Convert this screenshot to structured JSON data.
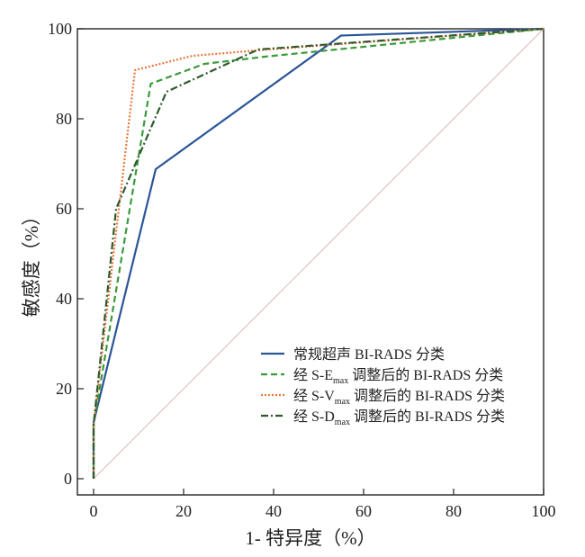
{
  "chart_data": {
    "type": "line",
    "title": "",
    "xlabel": "1- 特异度（%）",
    "ylabel": "敏感度（%）",
    "xlim": [
      0,
      100
    ],
    "ylim": [
      0,
      100
    ],
    "xticks": [
      "0",
      "20",
      "40",
      "60",
      "80",
      "100"
    ],
    "yticks": [
      "0",
      "20",
      "40",
      "60",
      "80",
      "100"
    ],
    "grid": false,
    "legend_position": "bottom-right",
    "series": [
      {
        "name": "常规超声 BI-RADS 分类",
        "legend_prefix": "常规超声 BI-RADS 分类",
        "legend_sub": "",
        "legend_suffix": "",
        "color": "#2a5597",
        "style": "solid",
        "x": [
          0,
          0,
          13.8,
          55,
          100
        ],
        "y": [
          0,
          12.5,
          68.8,
          98.5,
          100
        ]
      },
      {
        "name": "经 S-Emax 调整后的 BI-RADS 分类",
        "legend_prefix": "经 S-E",
        "legend_sub": "max",
        "legend_suffix": " 调整后的 BI-RADS 分类",
        "color": "#3a9a3a",
        "style": "dashed",
        "x": [
          0,
          0,
          12.7,
          24.6,
          38,
          100
        ],
        "y": [
          0,
          12,
          87.8,
          92.2,
          93.8,
          100
        ]
      },
      {
        "name": "经 S-Vmax 调整后的 BI-RADS 分类",
        "legend_prefix": "经 S-V",
        "legend_sub": "max",
        "legend_suffix": " 调整后的 BI-RADS 分类",
        "color": "#e8773a",
        "style": "dotted",
        "x": [
          0,
          0,
          9.2,
          22,
          40,
          100
        ],
        "y": [
          0,
          12,
          90.8,
          94,
          95.5,
          100
        ]
      },
      {
        "name": "经 S-Dmax 调整后的 BI-RADS 分类",
        "legend_prefix": "经 S-D",
        "legend_sub": "max",
        "legend_suffix": " 调整后的 BI-RADS 分类",
        "color": "#2f5a2f",
        "style": "dashdot",
        "x": [
          0,
          0,
          5,
          16.2,
          36.6,
          100
        ],
        "y": [
          0,
          12,
          60,
          86,
          95.4,
          100
        ]
      }
    ],
    "reference_line": {
      "color": "#e0b8b8",
      "x": [
        0,
        100
      ],
      "y": [
        0,
        100
      ]
    }
  }
}
